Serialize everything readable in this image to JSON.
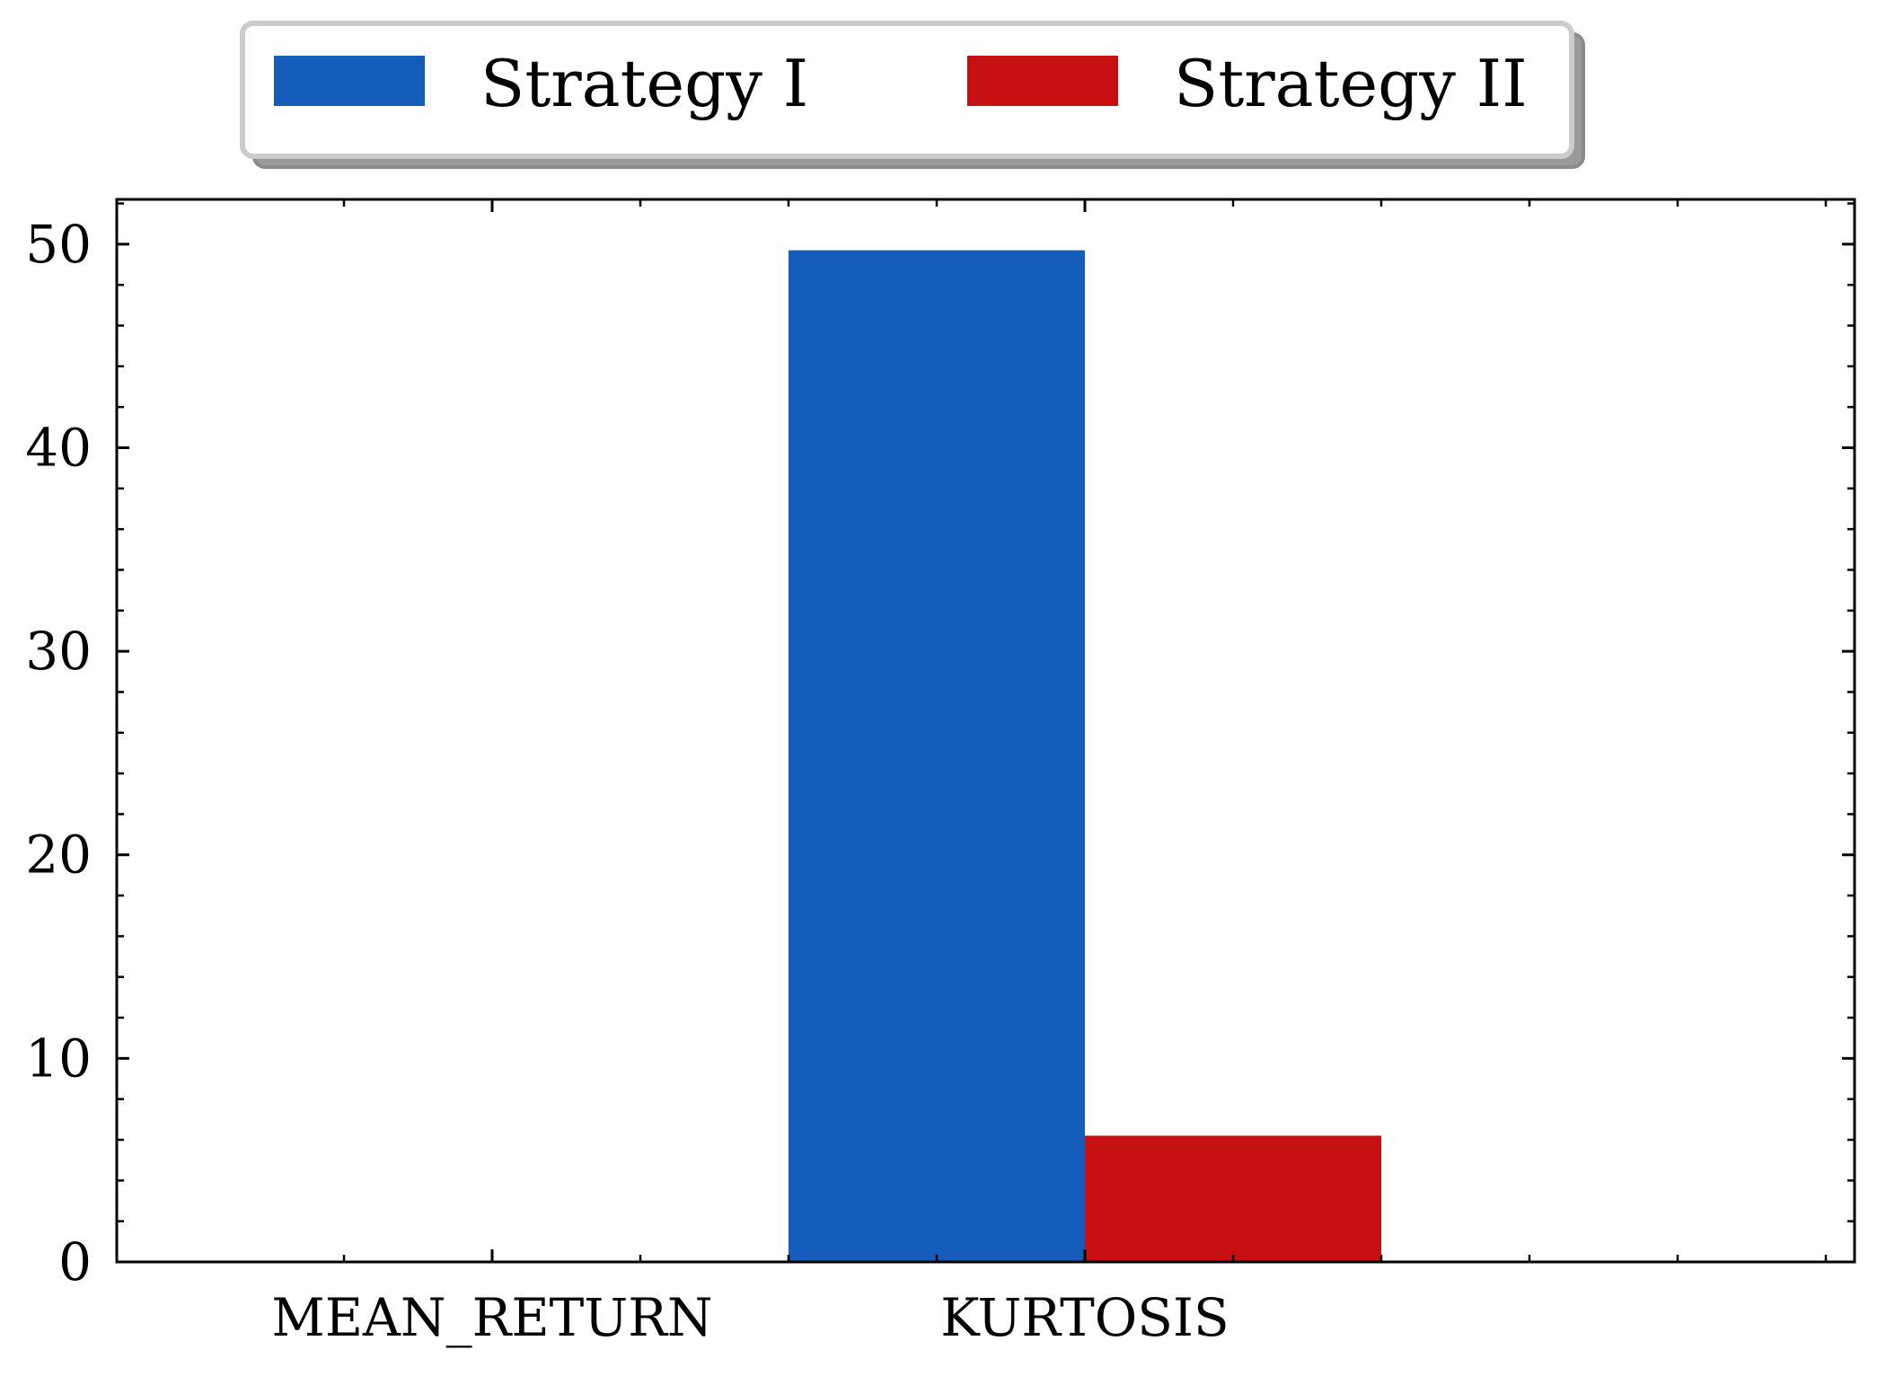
{
  "chart_data": {
    "type": "bar",
    "categories": [
      "MEAN_RETURN",
      "KURTOSIS"
    ],
    "category_labels": [
      "MEAN_RETURN",
      "KURTOSIS"
    ],
    "series": [
      {
        "name": "Strategy I",
        "color": "#155dba",
        "values": [
          0.0,
          49.7
        ]
      },
      {
        "name": "Strategy II",
        "color": "#c61011",
        "values": [
          0.0,
          6.2
        ]
      }
    ],
    "title": "",
    "xlabel": "",
    "ylabel": "",
    "ylim": [
      0,
      52.2
    ],
    "yticks": [
      0,
      10,
      20,
      30,
      40,
      50
    ],
    "grid": false,
    "legend_position": "top-center"
  }
}
